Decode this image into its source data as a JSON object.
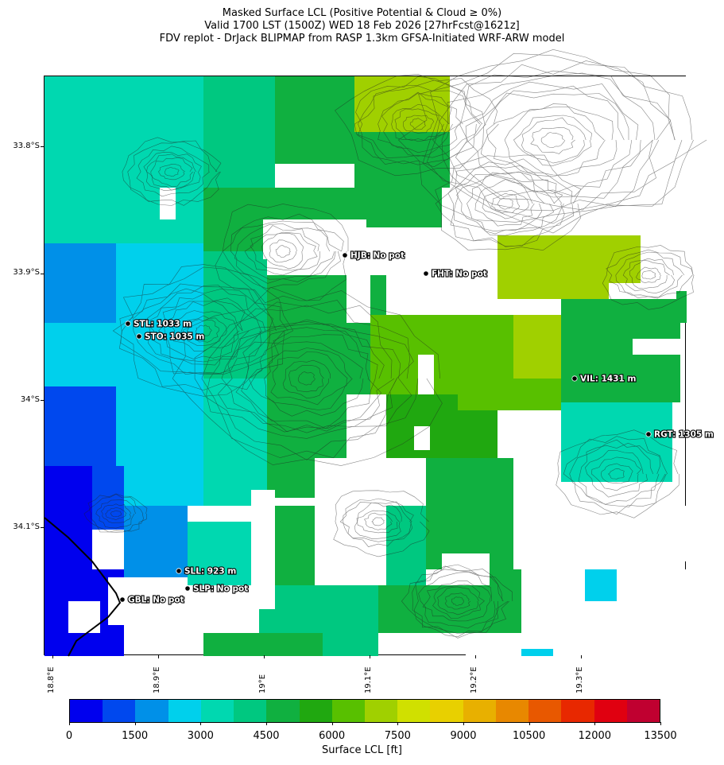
{
  "title": {
    "line1": "Masked Surface LCL (Positive Potential & Cloud ≥ 0%)",
    "line2": "Valid 1700 LST (1500Z) WED 18 Feb 2026 [27hrFcst@1621z]",
    "line3": "FDV replot - DrJack BLIPMAP from RASP 1.3km GFSA-Initiated WRF-ARW model"
  },
  "axes": {
    "lat_labels": [
      "33.8°S",
      "33.9°S",
      "34°S",
      "34.1°S"
    ],
    "lon_labels": [
      "18.8°E",
      "18.9°E",
      "19°E",
      "19.1°E",
      "19.2°E",
      "19.3°E"
    ]
  },
  "stations": [
    {
      "id": "hjb",
      "label": "HJB: No pot"
    },
    {
      "id": "fht",
      "label": "FHT: No pot"
    },
    {
      "id": "stl",
      "label": "STL: 1033 m"
    },
    {
      "id": "sto",
      "label": "STO: 1035 m"
    },
    {
      "id": "vil",
      "label": "VIL: 1431 m"
    },
    {
      "id": "rgt",
      "label": "RGT: 1305 m"
    },
    {
      "id": "sll",
      "label": "SLL: 923 m"
    },
    {
      "id": "slp",
      "label": "SLP: No pot"
    },
    {
      "id": "gbl",
      "label": "GBL: No pot"
    }
  ],
  "colorbar": {
    "xlabel": "Surface LCL [ft]",
    "tick_labels": [
      "0",
      "1500",
      "3000",
      "4500",
      "6000",
      "7500",
      "9000",
      "10500",
      "12000",
      "13500"
    ],
    "colors": [
      "#0000ee",
      "#0048ee",
      "#0090e8",
      "#00d0ec",
      "#00d8b0",
      "#00c880",
      "#10b040",
      "#20a810",
      "#58c000",
      "#a0d000",
      "#d0e000",
      "#e8d000",
      "#e8b000",
      "#e88800",
      "#e85800",
      "#e82800",
      "#e00010",
      "#c00030"
    ]
  },
  "map_colors": {
    "white": "#ffffff",
    "deep_blue": "#0000ee",
    "blue": "#0048ee",
    "mid_blue": "#0090e8",
    "light_blue": "#00d0ec",
    "teal": "#00d8b0",
    "sea_green": "#00c880",
    "green": "#10b040",
    "dark_green": "#20a810",
    "lime": "#58c000",
    "yellow_green": "#a0d000",
    "yellow": "#d0e000"
  }
}
